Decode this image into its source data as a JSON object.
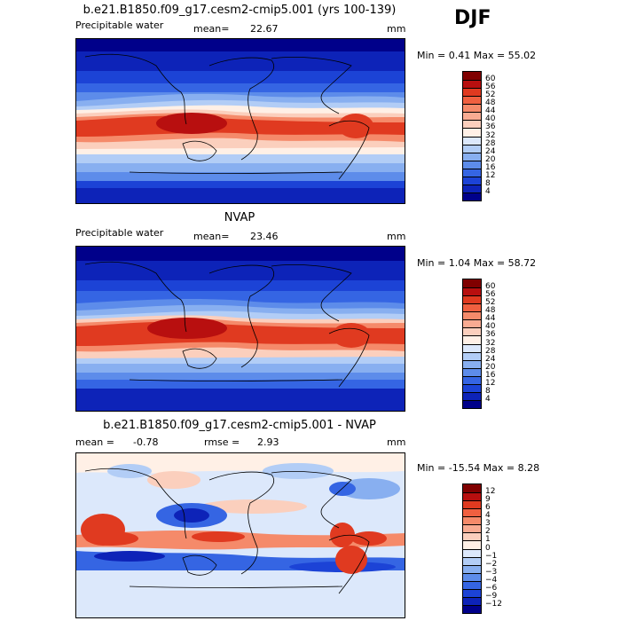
{
  "season": "DJF",
  "panels": [
    {
      "title": "b.e21.B1850.f09_g17.cesm2-cmip5.001 (yrs 100-139)",
      "left_label": "Precipitable water",
      "center_label": "mean=",
      "center_value": "22.67",
      "right_label": "mm",
      "minmax": "Min =    0.41  Max =   55.02"
    },
    {
      "title": "NVAP",
      "left_label": "Precipitable water",
      "center_label": "mean=",
      "center_value": "23.46",
      "right_label": "mm",
      "minmax": "Min =    1.04  Max =   58.72"
    },
    {
      "title": "b.e21.B1850.f09_g17.cesm2-cmip5.001 - NVAP",
      "left_label": "mean =",
      "left_value": "-0.78",
      "center_label": "rmse =",
      "center_value": "2.93",
      "right_label": "mm",
      "minmax": "Min = -15.54  Max =    8.28"
    }
  ],
  "chart_data": [
    {
      "type": "heatmap",
      "title": "b.e21.B1850.f09_g17.cesm2-cmip5.001 (yrs 100-139)",
      "variable": "Precipitable water",
      "units": "mm",
      "mean": 22.67,
      "min": 0.41,
      "max": 55.02,
      "colorbar_levels": [
        "60",
        "56",
        "52",
        "48",
        "44",
        "40",
        "36",
        "32",
        "28",
        "24",
        "20",
        "16",
        "12",
        "8",
        "4"
      ],
      "colorbar_colors": [
        "#800000",
        "#b80f0f",
        "#e03a20",
        "#f06040",
        "#f58a6a",
        "#f8ab92",
        "#fbcfbd",
        "#fff0e6",
        "#dce8fb",
        "#b2cdf6",
        "#88aff0",
        "#5d8cea",
        "#3565e3",
        "#1c43d6",
        "#0d23b8",
        "#00008a"
      ]
    },
    {
      "type": "heatmap",
      "title": "NVAP",
      "variable": "Precipitable water",
      "units": "mm",
      "mean": 23.46,
      "min": 1.04,
      "max": 58.72,
      "colorbar_levels": [
        "60",
        "56",
        "52",
        "48",
        "44",
        "40",
        "36",
        "32",
        "28",
        "24",
        "20",
        "16",
        "12",
        "8",
        "4"
      ],
      "colorbar_colors": [
        "#800000",
        "#b80f0f",
        "#e03a20",
        "#f06040",
        "#f58a6a",
        "#f8ab92",
        "#fbcfbd",
        "#fff0e6",
        "#dce8fb",
        "#b2cdf6",
        "#88aff0",
        "#5d8cea",
        "#3565e3",
        "#1c43d6",
        "#0d23b8",
        "#00008a"
      ]
    },
    {
      "type": "heatmap",
      "title": "b.e21.B1850.f09_g17.cesm2-cmip5.001 - NVAP",
      "units": "mm",
      "mean": -0.78,
      "rmse": 2.93,
      "min": -15.54,
      "max": 8.28,
      "colorbar_levels": [
        "12",
        "9",
        "6",
        "4",
        "3",
        "2",
        "1",
        "0",
        "−1",
        "−2",
        "−3",
        "−4",
        "−6",
        "−9",
        "−12"
      ],
      "colorbar_colors": [
        "#800000",
        "#b80f0f",
        "#e03a20",
        "#f06040",
        "#f58a6a",
        "#f8ab92",
        "#fbcfbd",
        "#fff0e6",
        "#dce8fb",
        "#b2cdf6",
        "#88aff0",
        "#5d8cea",
        "#3565e3",
        "#1c43d6",
        "#0d23b8",
        "#00008a"
      ]
    }
  ]
}
